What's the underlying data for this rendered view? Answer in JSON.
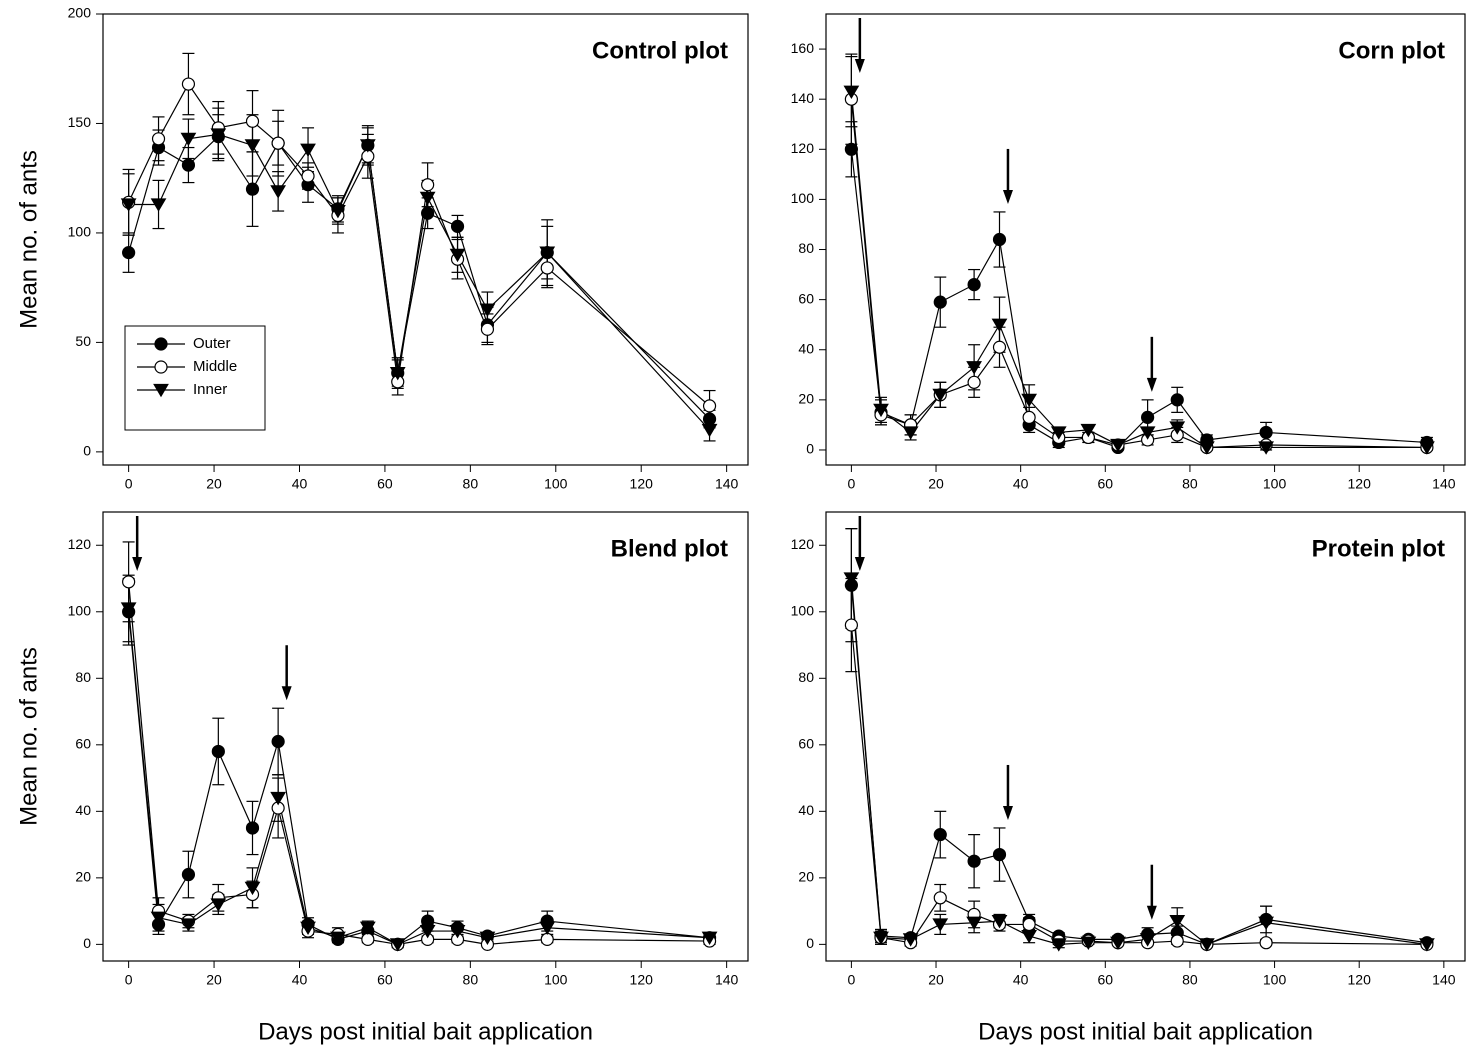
{
  "chart_data": [
    {
      "type": "line",
      "title": "Control plot",
      "y_label": "Mean no. of ants",
      "x": [
        0,
        7,
        14,
        21,
        29,
        35,
        42,
        49,
        56,
        63,
        70,
        77,
        84,
        98,
        136
      ],
      "series": [
        {
          "name": "Outer",
          "marker": "filled-circle",
          "color": "#000000",
          "values": [
            91,
            139,
            131,
            144,
            120,
            141,
            122,
            111,
            140,
            36,
            109,
            103,
            58,
            91,
            15
          ],
          "errors": [
            9,
            8,
            8,
            10,
            17,
            10,
            8,
            6,
            8,
            6,
            7,
            5,
            8,
            12,
            4
          ]
        },
        {
          "name": "Middle",
          "marker": "open-circle",
          "color": "#000000",
          "values": [
            114,
            143,
            168,
            148,
            151,
            141,
            126,
            108,
            135,
            32,
            122,
            88,
            56,
            84,
            21
          ],
          "errors": [
            15,
            10,
            14,
            12,
            14,
            15,
            6,
            8,
            10,
            6,
            10,
            9,
            7,
            9,
            7
          ]
        },
        {
          "name": "Inner",
          "marker": "filled-triangle-down",
          "color": "#000000",
          "values": [
            113,
            113,
            143,
            145,
            140,
            119,
            138,
            110,
            140,
            36,
            116,
            90,
            65,
            91,
            10
          ],
          "errors": [
            14,
            11,
            9,
            12,
            14,
            9,
            10,
            6,
            9,
            7,
            8,
            8,
            8,
            15,
            5
          ]
        }
      ],
      "xlim": [
        -6,
        145
      ],
      "ylim": [
        -6,
        200
      ],
      "xticks": [
        0,
        20,
        40,
        60,
        80,
        100,
        120,
        140
      ],
      "yticks": [
        0,
        50,
        100,
        150,
        200
      ],
      "legend": "lower left",
      "arrows_x": []
    },
    {
      "type": "line",
      "title": "Corn plot",
      "x": [
        0,
        7,
        14,
        21,
        29,
        35,
        42,
        49,
        56,
        63,
        70,
        77,
        84,
        98,
        136
      ],
      "series": [
        {
          "marker": "filled-circle",
          "color": "#000000",
          "values": [
            120,
            15,
            10,
            59,
            66,
            84,
            10,
            3,
            5,
            1,
            13,
            20,
            4,
            7,
            3
          ],
          "errors": [
            11,
            5,
            4,
            10,
            6,
            11,
            3,
            2,
            2,
            1,
            7,
            5,
            2,
            4,
            2
          ]
        },
        {
          "marker": "open-circle",
          "color": "#000000",
          "values": [
            140,
            14,
            10,
            22,
            27,
            41,
            13,
            5,
            5,
            2,
            4,
            6,
            1,
            2,
            1
          ],
          "errors": [
            18,
            4,
            4,
            5,
            6,
            8,
            4,
            2,
            2,
            1,
            2,
            3,
            1,
            1,
            1
          ]
        },
        {
          "marker": "filled-triangle-down",
          "color": "#000000",
          "values": [
            143,
            16,
            7,
            22,
            33,
            50,
            20,
            7,
            8,
            2,
            7,
            9,
            1,
            1,
            1
          ],
          "errors": [
            14,
            5,
            3,
            5,
            9,
            11,
            6,
            2,
            2,
            1,
            2,
            3,
            1,
            1,
            1
          ]
        }
      ],
      "xlim": [
        -6,
        145
      ],
      "ylim": [
        -6,
        174
      ],
      "xticks": [
        0,
        20,
        40,
        60,
        80,
        100,
        120,
        140
      ],
      "yticks": [
        0,
        20,
        40,
        60,
        80,
        100,
        120,
        140,
        160
      ],
      "arrows_x": [
        2,
        37,
        71
      ]
    },
    {
      "type": "line",
      "title": "Blend plot",
      "y_label": "Mean no. of ants",
      "x_label": "Days post initial bait application",
      "x": [
        0,
        7,
        14,
        21,
        29,
        35,
        42,
        49,
        56,
        63,
        70,
        77,
        84,
        98,
        136
      ],
      "series": [
        {
          "marker": "filled-circle",
          "color": "#000000",
          "values": [
            100,
            6,
            21,
            58,
            35,
            61,
            6,
            1.5,
            4,
            0,
            7,
            5,
            2.5,
            7,
            2
          ],
          "errors": [
            10,
            3,
            7,
            10,
            8,
            10,
            2,
            1,
            2,
            1,
            3,
            2,
            1,
            3,
            1
          ]
        },
        {
          "marker": "open-circle",
          "color": "#000000",
          "values": [
            109,
            10,
            7,
            14,
            15,
            41,
            4,
            3,
            1.5,
            0,
            1.5,
            1.5,
            0,
            1.5,
            1
          ],
          "errors": [
            12,
            4,
            2,
            4,
            4,
            9,
            2,
            2,
            1,
            0.5,
            1,
            1,
            0.5,
            1,
            1
          ]
        },
        {
          "marker": "filled-triangle-down",
          "color": "#000000",
          "values": [
            101,
            8,
            6,
            12,
            17,
            44,
            5,
            2,
            5,
            0,
            4,
            4,
            2,
            5,
            2
          ],
          "errors": [
            10,
            4,
            2,
            3,
            6,
            7,
            2,
            1,
            2,
            0.5,
            2,
            2,
            1,
            2,
            1
          ]
        }
      ],
      "xlim": [
        -6,
        145
      ],
      "ylim": [
        -5,
        130
      ],
      "xticks": [
        0,
        20,
        40,
        60,
        80,
        100,
        120,
        140
      ],
      "yticks": [
        0,
        20,
        40,
        60,
        80,
        100,
        120
      ],
      "arrows_x": [
        2,
        37
      ]
    },
    {
      "type": "line",
      "title": "Protein plot",
      "x_label": "Days post initial bait application",
      "x": [
        0,
        7,
        14,
        21,
        29,
        35,
        42,
        49,
        56,
        63,
        70,
        77,
        84,
        98,
        136
      ],
      "series": [
        {
          "marker": "filled-circle",
          "color": "#000000",
          "values": [
            108,
            2.5,
            2,
            33,
            25,
            27,
            7,
            2.5,
            1.5,
            1.5,
            3,
            3.5,
            0,
            7.5,
            0.5
          ],
          "errors": [
            17,
            2,
            1,
            7,
            8,
            8,
            2,
            1,
            1,
            1,
            2,
            2,
            0.5,
            4,
            0.5
          ]
        },
        {
          "marker": "open-circle",
          "color": "#000000",
          "values": [
            96,
            2,
            0.5,
            14,
            9,
            6,
            6,
            1,
            1,
            0.5,
            0.5,
            1,
            0,
            0.5,
            0
          ],
          "errors": [
            14,
            1,
            1,
            4,
            4,
            2,
            2,
            1,
            0.5,
            0.5,
            0.5,
            1,
            0.5,
            0.5,
            0.5
          ]
        },
        {
          "marker": "filled-triangle-down",
          "color": "#000000",
          "values": [
            110,
            2,
            1.5,
            6,
            6.5,
            7,
            2.5,
            0,
            0.5,
            0.5,
            1.5,
            7,
            0,
            6.5,
            0
          ],
          "errors": [
            15,
            2,
            1,
            3,
            3,
            2,
            2,
            1,
            0.5,
            0.5,
            1,
            4,
            0.5,
            5,
            0.5
          ]
        }
      ],
      "xlim": [
        -6,
        145
      ],
      "ylim": [
        -5,
        130
      ],
      "xticks": [
        0,
        20,
        40,
        60,
        80,
        100,
        120,
        140
      ],
      "yticks": [
        0,
        20,
        40,
        60,
        80,
        100,
        120
      ],
      "arrows_x": [
        2,
        37,
        71
      ]
    }
  ]
}
